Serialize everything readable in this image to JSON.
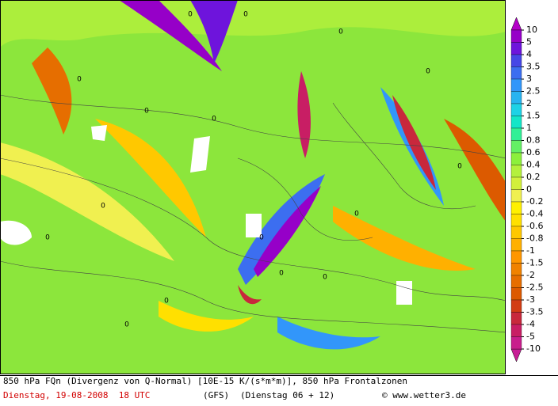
{
  "map": {
    "contour_labels": [
      "0",
      "0",
      "0",
      "0",
      "0",
      "0",
      "0",
      "0",
      "0",
      "0",
      "0",
      "0",
      "0",
      "0",
      "0",
      "0"
    ]
  },
  "colorbar": {
    "levels": [
      10,
      5,
      4,
      3.5,
      3,
      2.5,
      2,
      1.5,
      1,
      0.8,
      0.6,
      0.4,
      0.2,
      0,
      -0.2,
      -0.4,
      -0.6,
      -0.8,
      -1,
      -1.5,
      -2,
      -2.5,
      -3,
      -3.5,
      -4,
      -5,
      -10
    ],
    "colors": [
      "#9600c8",
      "#6e14dc",
      "#4646e6",
      "#3c6ef0",
      "#3296fa",
      "#28b4f0",
      "#1ed2e6",
      "#14e6c8",
      "#32f096",
      "#64f064",
      "#8cf03c",
      "#b4f03c",
      "#d2f03c",
      "#f0f050",
      "#fff000",
      "#ffe000",
      "#ffc800",
      "#ffb000",
      "#ff9600",
      "#f08200",
      "#e66e00",
      "#dc5a00",
      "#d23c14",
      "#c8283c",
      "#c81e64",
      "#c81e8c"
    ],
    "over_color": "#b400c8",
    "under_color": "#c81e96"
  },
  "footer": {
    "description": "850 hPa FQn (Divergenz von Q-Normal) [10E-15 K/(s*m*m)], 850 hPa Frontalzonen",
    "date": "Dienstag, 19-08-2008  18 UTC",
    "model": "(GFS)",
    "run": "(Dienstag 06 + 12)",
    "copyright": "© www.wetter3.de"
  }
}
